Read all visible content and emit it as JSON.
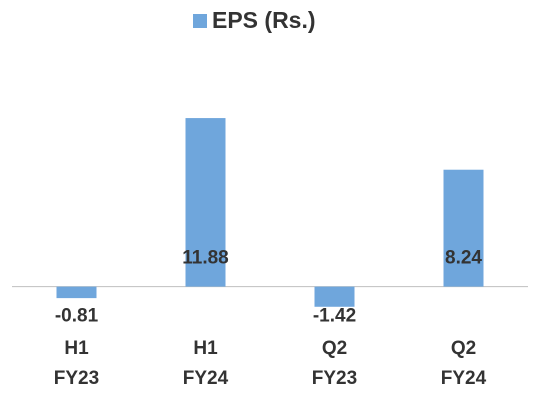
{
  "chart_data": {
    "type": "bar",
    "series": [
      {
        "name": "EPS (Rs.)",
        "color": "#6fa6dc",
        "values": [
          -0.81,
          11.88,
          -1.42,
          8.24
        ]
      }
    ],
    "categories": [
      "H1\nFY23",
      "H1\nFY24",
      "Q2\nFY23",
      "Q2\nFY24"
    ],
    "ylim": [
      -2,
      14
    ],
    "legend": "top"
  }
}
